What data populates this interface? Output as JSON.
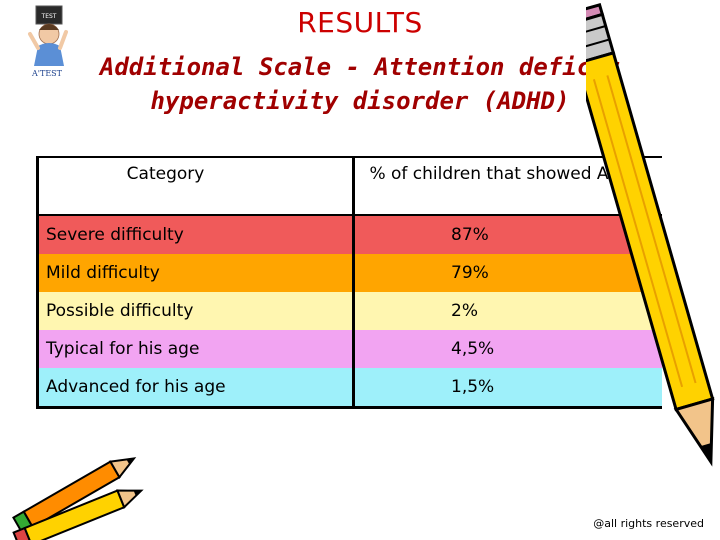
{
  "header": {
    "title": "RESULTS",
    "subtitle_line1": "Additional Scale - Attention deficit",
    "subtitle_line2": "hyperactivity disorder (ADHD)"
  },
  "logo": {
    "badge_text": "TEST",
    "brand_text": "A'TEST"
  },
  "table": {
    "headers": [
      "Category",
      "% of children that showed ADHD"
    ],
    "rows": [
      {
        "category": "Severe difficulty",
        "value": "87%",
        "color": "#f05a5a"
      },
      {
        "category": "Mild difficulty",
        "value": "79%",
        "color": "#ffa500"
      },
      {
        "category": "Possible difficulty",
        "value": "2%",
        "color": "#fff6b0"
      },
      {
        "category": "Typical for his age",
        "value": "4,5%",
        "color": "#f2a4f2"
      },
      {
        "category": "Advanced for his age",
        "value": "1,5%",
        "color": "#9ef0fa"
      }
    ]
  },
  "footer": {
    "copyright": "@all rights reserved"
  },
  "icons": [
    "logo-child-icon",
    "pencil-right-icon",
    "pencils-left-icon"
  ]
}
